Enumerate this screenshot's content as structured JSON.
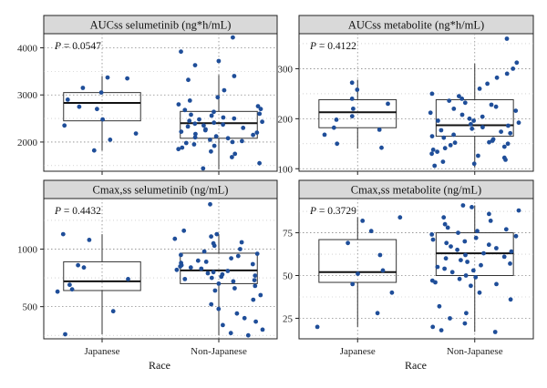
{
  "figure": {
    "x_axis_title": "Race",
    "point_color": "#1f4e99",
    "strip_fill": "#d9d9d9",
    "grid_color": "#8a8a8a"
  },
  "chart_data": [
    {
      "type": "box",
      "title": "AUCss selumetinib (ng*h/mL)",
      "annotation_label": "P",
      "annotation_value": " = 0.0547",
      "categories": [
        "Japanese",
        "Non-Japanese"
      ],
      "ylim": [
        1380,
        4300
      ],
      "yticks": [
        2000,
        3000,
        4000
      ],
      "grid": true,
      "boxes": [
        {
          "lower_whisker": 1820,
          "q1": 2450,
          "median": 2830,
          "q3": 3050,
          "upper_whisker": 3400
        },
        {
          "lower_whisker": 1420,
          "q1": 2080,
          "median": 2400,
          "q3": 2650,
          "upper_whisker": 3420
        }
      ],
      "points": [
        [
          3050,
          3370,
          2900,
          2750,
          2700,
          2480,
          2350,
          2180,
          2050,
          1820,
          3150,
          3350
        ],
        [
          4220,
          3920,
          3720,
          3630,
          3400,
          3320,
          3100,
          2950,
          2880,
          2800,
          2760,
          2700,
          2680,
          2640,
          2600,
          2580,
          2560,
          2520,
          2500,
          2480,
          2450,
          2430,
          2410,
          2390,
          2370,
          2350,
          2330,
          2300,
          2270,
          2250,
          2220,
          2200,
          2170,
          2150,
          2120,
          2100,
          2080,
          2050,
          2020,
          2000,
          1980,
          1950,
          1920,
          1880,
          1850,
          1800,
          1750,
          1680,
          1550,
          1440
        ]
      ]
    },
    {
      "type": "box",
      "title": "AUCss metabolite (ng*h/mL)",
      "annotation_label": "P",
      "annotation_value": " = 0.4122",
      "categories": [
        "Japanese",
        "Non-Japanese"
      ],
      "ylim": [
        95,
        370
      ],
      "yticks": [
        100,
        200,
        300
      ],
      "grid": true,
      "boxes": [
        {
          "lower_whisker": 140,
          "q1": 182,
          "median": 213,
          "q3": 238,
          "upper_whisker": 278
        },
        {
          "lower_whisker": 102,
          "q1": 165,
          "median": 187,
          "q3": 238,
          "upper_whisker": 310
        }
      ],
      "points": [
        [
          272,
          258,
          240,
          230,
          220,
          205,
          198,
          182,
          178,
          168,
          150,
          142
        ],
        [
          360,
          312,
          300,
          290,
          282,
          270,
          260,
          250,
          245,
          240,
          236,
          232,
          228,
          224,
          220,
          216,
          212,
          208,
          204,
          200,
          196,
          192,
          189,
          186,
          183,
          180,
          177,
          174,
          171,
          168,
          165,
          162,
          159,
          156,
          153,
          150,
          147,
          144,
          141,
          138,
          134,
          130,
          126,
          122,
          118,
          114,
          110,
          106,
          152,
          196
        ]
      ]
    },
    {
      "type": "box",
      "title": "Cmax,ss selumetinib (ng/mL)",
      "annotation_label": "P",
      "annotation_value": " = 0.4432",
      "categories": [
        "Japanese",
        "Non-Japanese"
      ],
      "ylim": [
        220,
        1440
      ],
      "yticks": [
        500,
        1000
      ],
      "grid": true,
      "boxes": [
        {
          "lower_whisker": 260,
          "q1": 640,
          "median": 720,
          "q3": 890,
          "upper_whisker": 1130
        },
        {
          "lower_whisker": 250,
          "q1": 700,
          "median": 815,
          "q3": 965,
          "upper_whisker": 1130
        }
      ],
      "points": [
        [
          1130,
          1080,
          860,
          840,
          740,
          690,
          650,
          630,
          460,
          260
        ],
        [
          1390,
          1160,
          1130,
          1110,
          1090,
          1060,
          1030,
          1000,
          980,
          960,
          940,
          920,
          900,
          890,
          880,
          870,
          860,
          850,
          840,
          830,
          820,
          810,
          800,
          790,
          780,
          770,
          760,
          750,
          740,
          730,
          720,
          700,
          680,
          660,
          640,
          600,
          560,
          520,
          480,
          440,
          400,
          370,
          340,
          300,
          270,
          250,
          1050,
          950
        ]
      ]
    },
    {
      "type": "box",
      "title": "Cmax,ss metabolite (ng/mL)",
      "annotation_label": "P",
      "annotation_value": " = 0.3729",
      "categories": [
        "Japanese",
        "Non-Japanese"
      ],
      "ylim": [
        13,
        95
      ],
      "yticks": [
        25,
        50,
        75
      ],
      "grid": true,
      "boxes": [
        {
          "lower_whisker": 20,
          "q1": 46,
          "median": 52,
          "q3": 71,
          "upper_whisker": 84
        },
        {
          "lower_whisker": 17,
          "q1": 50,
          "median": 63,
          "q3": 75,
          "upper_whisker": 91
        }
      ],
      "points": [
        [
          84,
          82,
          76,
          69,
          62,
          53,
          51,
          45,
          40,
          28,
          20
        ],
        [
          91,
          90,
          88,
          86,
          84,
          82,
          80,
          78,
          76,
          75,
          74,
          73,
          72,
          71,
          70,
          69,
          68,
          67,
          66,
          65,
          64,
          63,
          62,
          61,
          60,
          59,
          58,
          57,
          56,
          55,
          54,
          53,
          52,
          50,
          49,
          48,
          47,
          46,
          45,
          44,
          40,
          36,
          32,
          28,
          25,
          22,
          20,
          18,
          17,
          77
        ]
      ]
    }
  ]
}
